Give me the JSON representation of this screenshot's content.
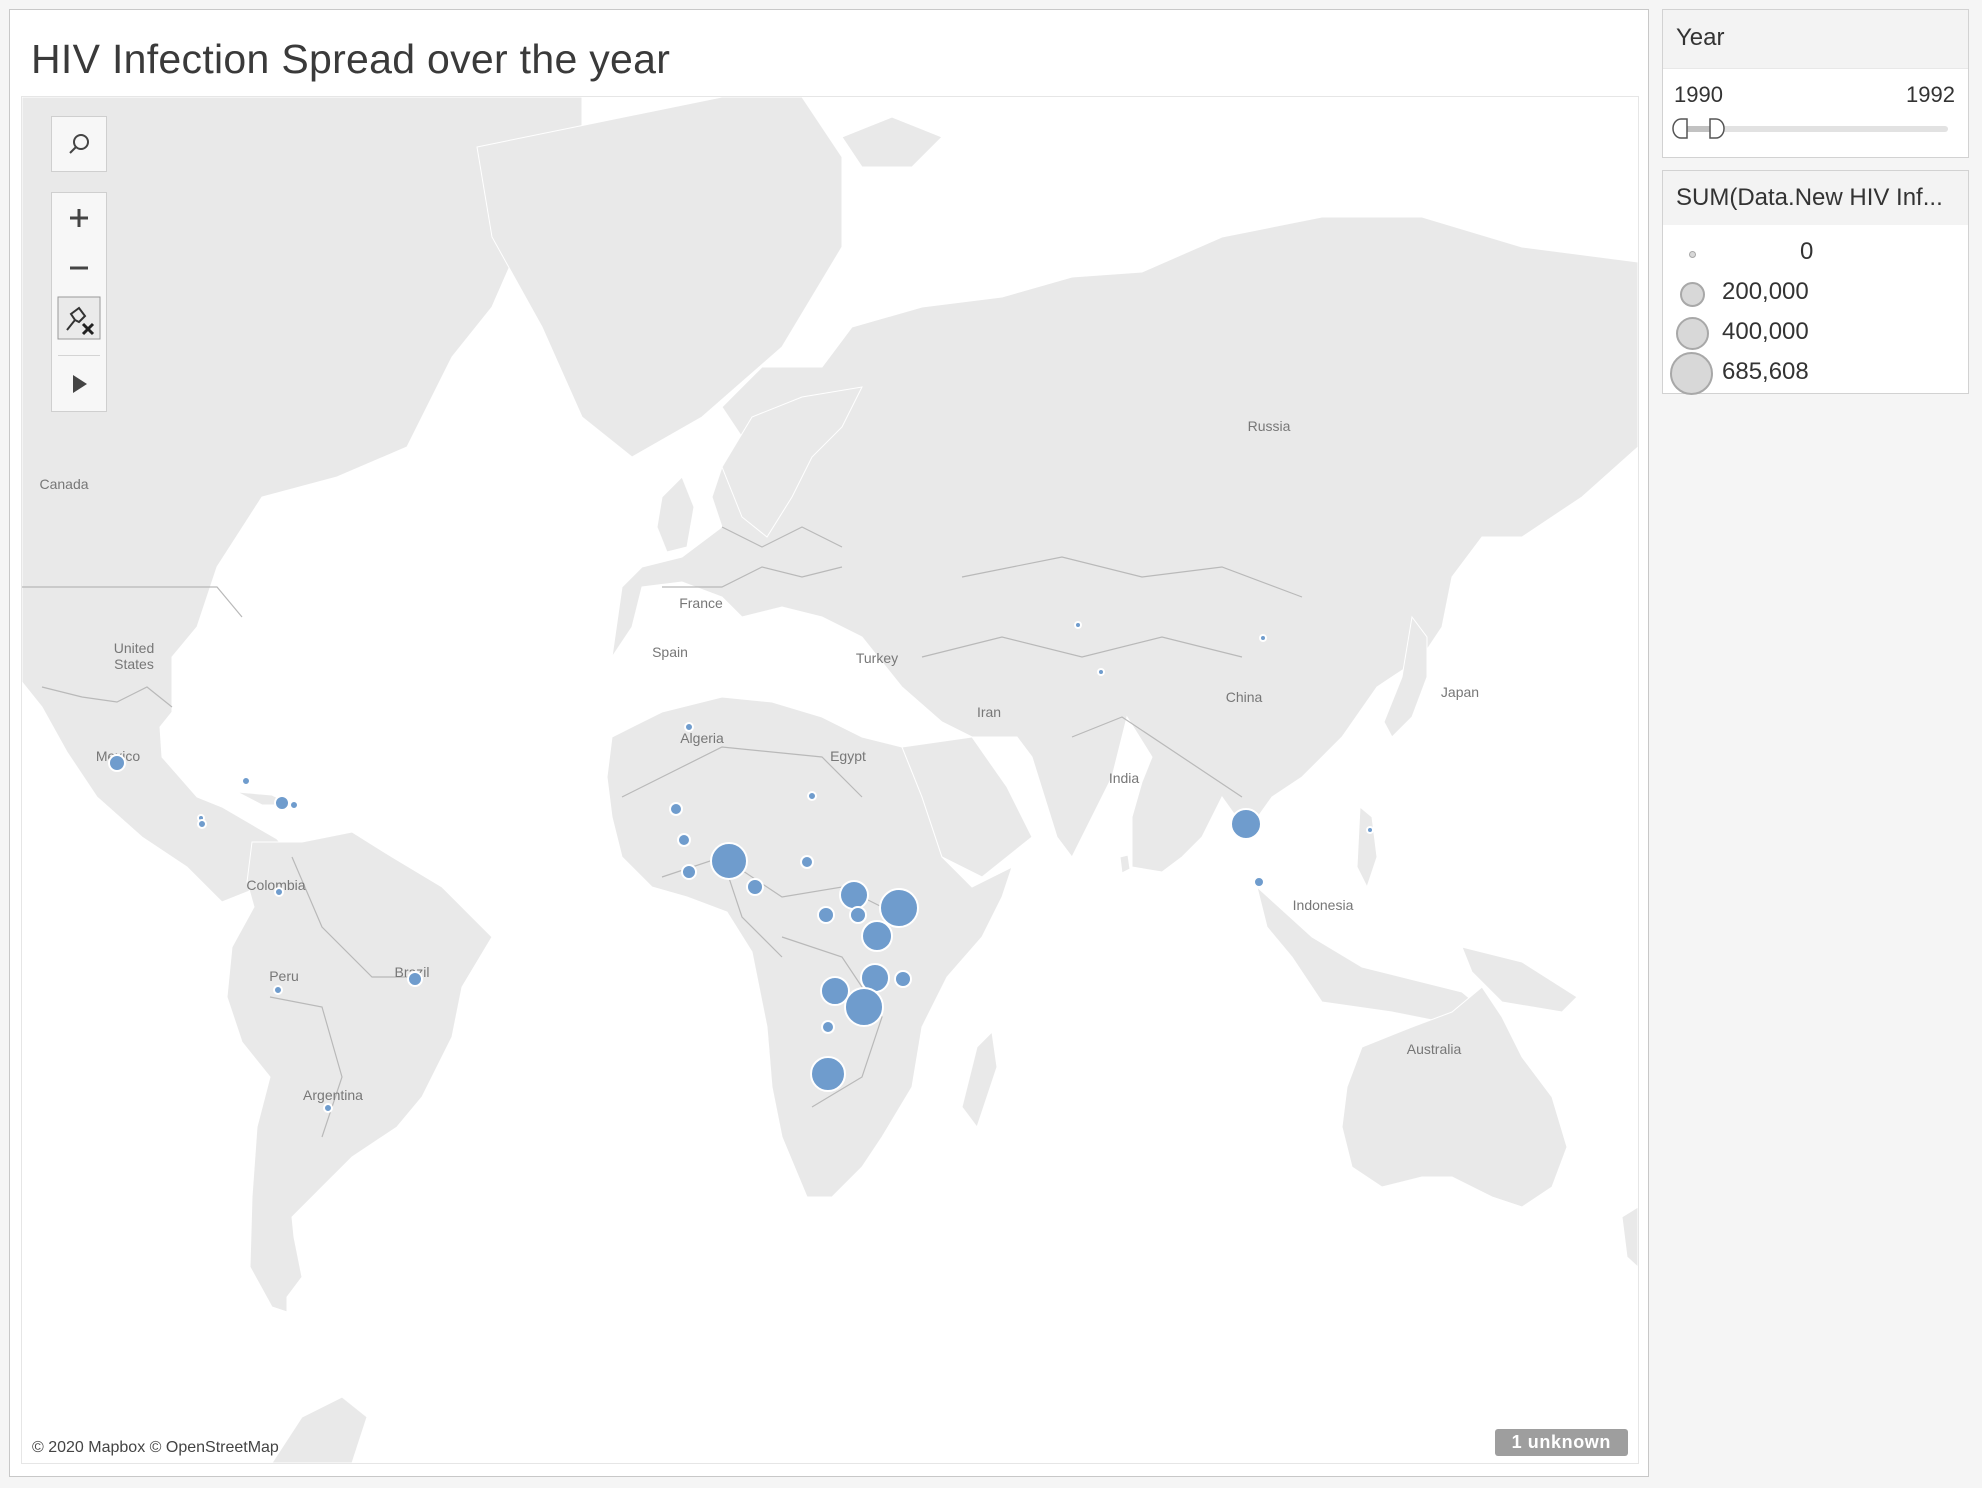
{
  "title": "HIV Infection Spread over the year",
  "map": {
    "labels": {
      "canada": "Canada",
      "united_states": "United\nStates",
      "mexico": "Mexico",
      "colombia": "Colombia",
      "peru": "Peru",
      "brazil": "Brazil",
      "argentina": "Argentina",
      "france": "France",
      "spain": "Spain",
      "turkey": "Turkey",
      "algeria": "Algeria",
      "egypt": "Egypt",
      "iran": "Iran",
      "india": "India",
      "china": "China",
      "japan": "Japan",
      "russia": "Russia",
      "indonesia": "Indonesia",
      "australia": "Australia"
    },
    "attribution": "© 2020 Mapbox © OpenStreetMap",
    "unknown_badge": "1 unknown",
    "bubble_color": "#6f9ccd",
    "land_color": "#e9e9e9",
    "toolbar": [
      "search-icon",
      "zoom-in-icon",
      "zoom-out-icon",
      "pin-clear-icon",
      "play-icon"
    ]
  },
  "year_filter": {
    "title": "Year",
    "min": "1990",
    "max": "1992"
  },
  "legend": {
    "title": "SUM(Data.New HIV Inf...",
    "items": [
      {
        "label": "0",
        "value": 0
      },
      {
        "label": "200,000",
        "value": 200000
      },
      {
        "label": "400,000",
        "value": 400000
      },
      {
        "label": "685,608",
        "value": 685608
      }
    ]
  }
}
